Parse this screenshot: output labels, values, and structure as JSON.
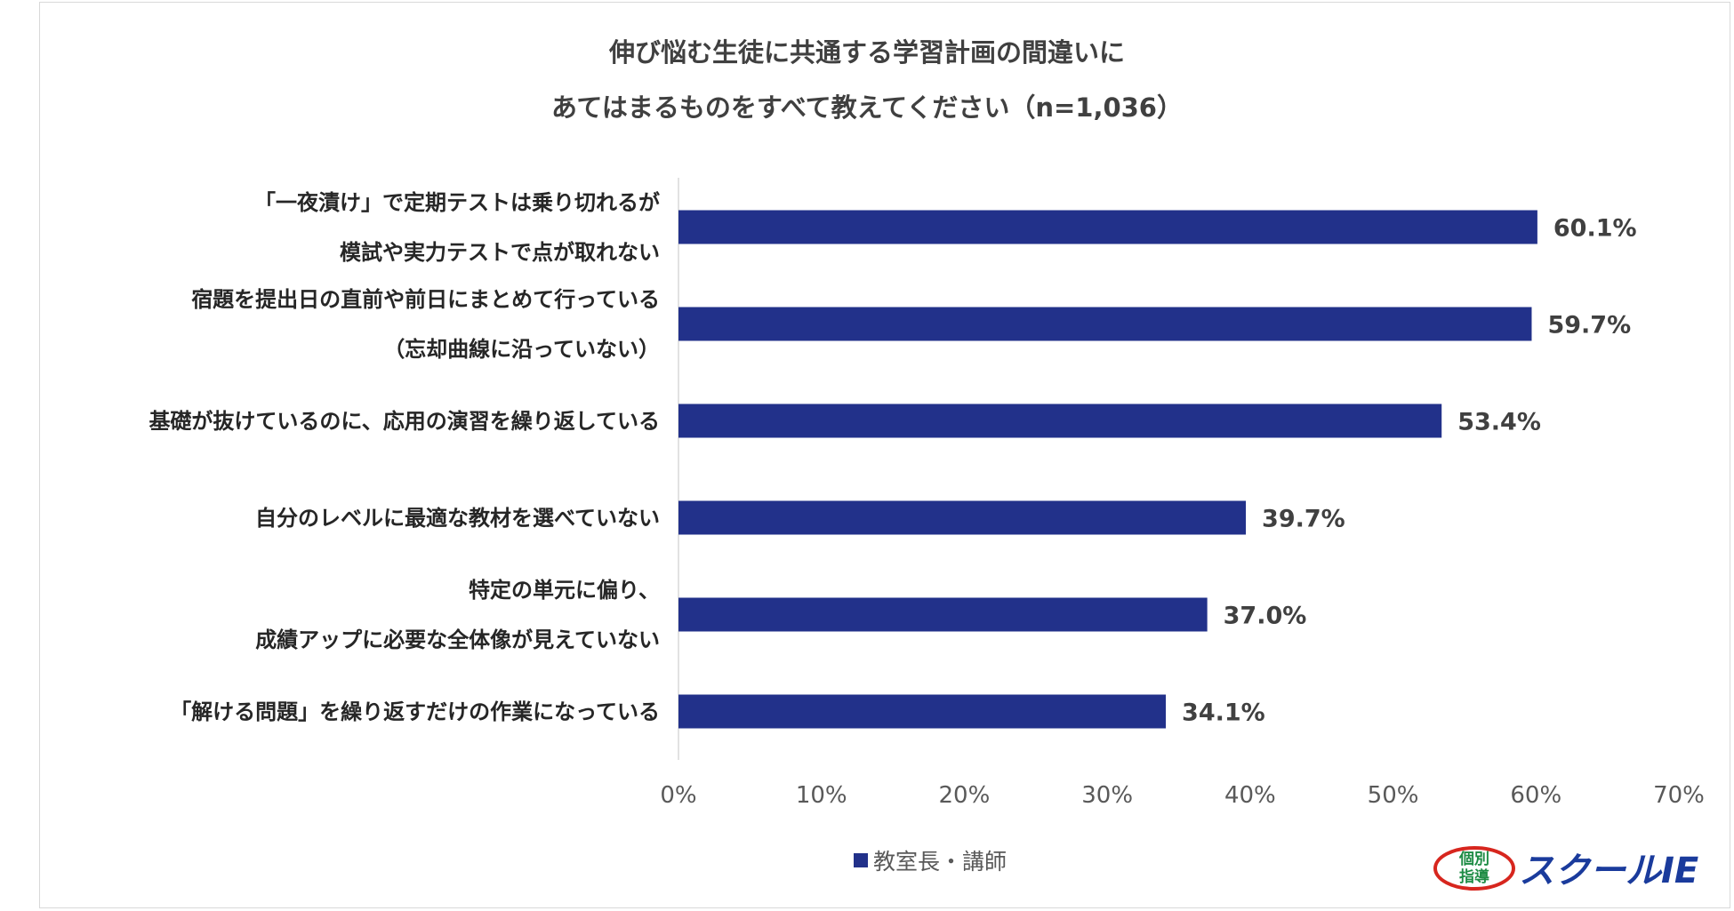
{
  "title_line1": "伸び悩む生徒に共通する学習計画の間違いに",
  "title_line2": "あてはまるものをすべて教えてください（n=1,036）",
  "chart_data": {
    "type": "bar",
    "orientation": "horizontal",
    "categories": [
      [
        "「一夜漬け」で定期テストは乗り切れるが",
        "模試や実力テストで点が取れない"
      ],
      [
        "宿題を提出日の直前や前日にまとめて行っている",
        "（忘却曲線に沿っていない）"
      ],
      [
        "基礎が抜けているのに、応用の演習を繰り返している"
      ],
      [
        "自分のレベルに最適な教材を選べていない"
      ],
      [
        "特定の単元に偏り、",
        "成績アップに必要な全体像が見えていない"
      ],
      [
        "「解ける問題」を繰り返すだけの作業になっている"
      ]
    ],
    "series": [
      {
        "name": "教室長・講師",
        "values": [
          60.1,
          59.7,
          53.4,
          39.7,
          37.0,
          34.1
        ],
        "data_labels": [
          "60.1%",
          "59.7%",
          "53.4%",
          "39.7%",
          "37.0%",
          "34.1%"
        ]
      }
    ],
    "xlim": [
      0,
      70
    ],
    "xticks": [
      "0%",
      "10%",
      "20%",
      "30%",
      "40%",
      "50%",
      "60%",
      "70%"
    ],
    "grid": false,
    "legend_position": "bottom",
    "bar_color": "#22318a"
  },
  "logo": {
    "text_small_top": "個別",
    "text_small_bottom": "指導",
    "text_main": "スクールIE",
    "colors": {
      "red": "#d7261e",
      "green": "#1e8c45",
      "blue": "#1a3b9c"
    }
  }
}
